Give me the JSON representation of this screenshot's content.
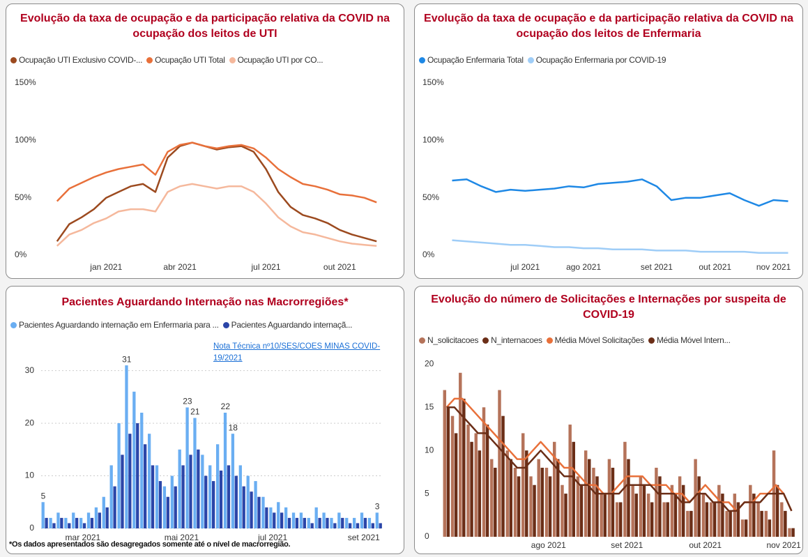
{
  "chart_data": [
    {
      "type": "line",
      "title": "Evolução da taxa de ocupação e da participação relativa da COVID na ocupação dos leitos de UTI",
      "categories": [
        null,
        null,
        null,
        null,
        "jan 2021",
        null,
        null,
        null,
        null,
        null,
        "abr 2021",
        null,
        null,
        null,
        null,
        null,
        null,
        "jul 2021",
        null,
        null,
        null,
        null,
        null,
        "out 2021",
        null,
        null,
        null
      ],
      "series": [
        {
          "name": "Ocupação UTI Exclusivo COVID-...",
          "color": "#9c4a1f",
          "values": [
            12,
            27,
            33,
            40,
            50,
            55,
            60,
            62,
            55,
            85,
            95,
            98,
            95,
            92,
            94,
            95,
            90,
            75,
            55,
            42,
            35,
            32,
            28,
            22,
            18,
            15,
            12
          ]
        },
        {
          "name": "Ocupação UTI Total",
          "color": "#e8703a",
          "values": [
            47,
            58,
            63,
            68,
            72,
            75,
            77,
            79,
            70,
            90,
            96,
            98,
            95,
            93,
            95,
            96,
            93,
            85,
            75,
            68,
            62,
            60,
            57,
            53,
            52,
            50,
            46
          ]
        },
        {
          "name": "Ocupação UTI por CO...",
          "color": "#f5b89c",
          "values": [
            8,
            18,
            22,
            28,
            32,
            38,
            40,
            40,
            38,
            55,
            60,
            62,
            60,
            58,
            60,
            60,
            55,
            45,
            33,
            25,
            20,
            18,
            15,
            12,
            10,
            9,
            8
          ]
        }
      ],
      "ylim": [
        0,
        150
      ],
      "yticks": [
        {
          "value": 0,
          "label": "0%"
        },
        {
          "value": 50,
          "label": "50%"
        },
        {
          "value": 100,
          "label": "100%"
        },
        {
          "value": 150,
          "label": "150%"
        }
      ],
      "grid": false
    },
    {
      "type": "line",
      "title": "Evolução da taxa de ocupação e da participação relativa da COVID na ocupação dos leitos de Enfermaria",
      "categories": [
        null,
        null,
        null,
        null,
        null,
        "jul 2021",
        null,
        null,
        null,
        "ago 2021",
        null,
        null,
        null,
        null,
        "set 2021",
        null,
        null,
        null,
        "out 2021",
        null,
        null,
        null,
        "nov 2021",
        null
      ],
      "series": [
        {
          "name": "Ocupação Enfermaria Total",
          "color": "#1e88e5",
          "values": [
            65,
            66,
            60,
            55,
            57,
            56,
            57,
            58,
            60,
            59,
            62,
            63,
            64,
            66,
            60,
            48,
            50,
            50,
            52,
            54,
            48,
            43,
            48,
            47
          ]
        },
        {
          "name": "Ocupação Enfermaria por COVID-19",
          "color": "#9fcdf7",
          "values": [
            13,
            12,
            11,
            10,
            9,
            9,
            8,
            7,
            7,
            6,
            6,
            5,
            5,
            5,
            4,
            4,
            4,
            3,
            3,
            3,
            3,
            2,
            2,
            2
          ]
        }
      ],
      "ylim": [
        0,
        150
      ],
      "yticks": [
        {
          "value": 0,
          "label": "0%"
        },
        {
          "value": 50,
          "label": "50%"
        },
        {
          "value": 100,
          "label": "100%"
        },
        {
          "value": 150,
          "label": "150%"
        }
      ],
      "grid": false
    },
    {
      "type": "bar",
      "title": "Pacientes Aguardando Internação nas Macrorregiões*",
      "note": "Nota Técnica nº10/SES/COES MINAS COVID-19/2021",
      "footnote": "*Os dados apresentados são desagregados somente até o nível de macrorregião.",
      "categories": [
        null,
        null,
        null,
        null,
        null,
        "mar 2021",
        null,
        null,
        null,
        null,
        null,
        null,
        null,
        null,
        null,
        null,
        null,
        null,
        "mai 2021",
        null,
        null,
        null,
        null,
        null,
        null,
        null,
        null,
        null,
        null,
        null,
        "jul 2021",
        null,
        null,
        null,
        null,
        null,
        null,
        null,
        null,
        null,
        null,
        null,
        "set 2021",
        null,
        null
      ],
      "series": [
        {
          "name": "Pacientes Aguardando internação em Enfermaria para ...",
          "color": "#6aaef2",
          "values": [
            5,
            2,
            3,
            2,
            3,
            2,
            3,
            4,
            6,
            12,
            20,
            31,
            26,
            22,
            18,
            12,
            8,
            10,
            15,
            23,
            21,
            14,
            12,
            16,
            22,
            18,
            12,
            10,
            9,
            6,
            4,
            5,
            4,
            3,
            3,
            2,
            4,
            3,
            2,
            3,
            2,
            2,
            3,
            2,
            3
          ],
          "value_labels": [
            "5",
            null,
            null,
            null,
            null,
            null,
            null,
            null,
            null,
            null,
            null,
            "31",
            null,
            null,
            null,
            null,
            null,
            null,
            null,
            "23",
            "21",
            null,
            null,
            null,
            "22",
            "18",
            null,
            null,
            null,
            null,
            null,
            null,
            null,
            null,
            null,
            null,
            null,
            null,
            null,
            null,
            null,
            null,
            null,
            null,
            "3"
          ]
        },
        {
          "name": "Pacientes Aguardando internaçã...",
          "color": "#2b45a8",
          "values": [
            2,
            1,
            2,
            1,
            2,
            1,
            2,
            3,
            4,
            8,
            14,
            18,
            20,
            16,
            12,
            9,
            6,
            8,
            12,
            14,
            15,
            10,
            9,
            11,
            12,
            10,
            8,
            7,
            6,
            4,
            3,
            3,
            2,
            2,
            2,
            1,
            2,
            2,
            1,
            2,
            1,
            1,
            2,
            1,
            1
          ]
        }
      ],
      "ylim": [
        0,
        33
      ],
      "yticks": [
        0,
        10,
        20,
        30
      ],
      "grid": true
    },
    {
      "type": "bar",
      "title": "Evolução do número de Solicitações e Internações por suspeita de COVID-19",
      "categories": [
        null,
        null,
        null,
        null,
        null,
        null,
        null,
        null,
        null,
        null,
        null,
        null,
        null,
        "ago 2021",
        null,
        null,
        null,
        null,
        null,
        null,
        null,
        null,
        null,
        "set 2021",
        null,
        null,
        null,
        null,
        null,
        null,
        null,
        null,
        null,
        "out 2021",
        null,
        null,
        null,
        null,
        null,
        null,
        null,
        null,
        null,
        "nov 2021",
        null
      ],
      "series": [
        {
          "name": "N_solicitacoes",
          "color": "#b5735a",
          "values": [
            17,
            14,
            19,
            13,
            12,
            15,
            9,
            17,
            10,
            8,
            12,
            7,
            9,
            8,
            11,
            6,
            13,
            7,
            10,
            8,
            5,
            9,
            4,
            11,
            6,
            7,
            5,
            8,
            4,
            6,
            7,
            3,
            9,
            5,
            4,
            6,
            3,
            5,
            2,
            6,
            4,
            3,
            10,
            4,
            1
          ]
        },
        {
          "name": "N_internacoes",
          "color": "#6b2e17",
          "values": [
            15,
            12,
            16,
            11,
            10,
            13,
            8,
            14,
            9,
            7,
            10,
            6,
            8,
            7,
            9,
            5,
            11,
            6,
            9,
            7,
            5,
            8,
            4,
            9,
            5,
            6,
            4,
            7,
            4,
            5,
            6,
            3,
            7,
            4,
            4,
            5,
            3,
            4,
            2,
            5,
            3,
            2,
            6,
            3,
            1
          ]
        },
        {
          "name": "Média Móvel Solicitações",
          "color": "#e8703a",
          "type": "line",
          "values": [
            15,
            16,
            16,
            15,
            14,
            13,
            12,
            11,
            10,
            9,
            9,
            10,
            11,
            10,
            9,
            8,
            8,
            7,
            6,
            6,
            5,
            5,
            6,
            7,
            7,
            7,
            6,
            6,
            6,
            5,
            5,
            4,
            5,
            6,
            5,
            4,
            4,
            3,
            4,
            4,
            5,
            5,
            6,
            5,
            3
          ]
        },
        {
          "name": "Média Móvel Intern...",
          "color": "#6b2e17",
          "type": "line",
          "values": [
            15,
            15,
            14,
            13,
            12,
            12,
            11,
            10,
            9,
            8,
            8,
            9,
            10,
            9,
            8,
            7,
            7,
            6,
            6,
            5,
            5,
            5,
            5,
            6,
            6,
            6,
            6,
            5,
            5,
            5,
            4,
            4,
            5,
            5,
            4,
            4,
            3,
            3,
            4,
            4,
            4,
            5,
            5,
            5,
            3
          ]
        }
      ],
      "ylim": [
        0,
        21
      ],
      "yticks": [
        0,
        5,
        10,
        15,
        20
      ],
      "grid": false
    }
  ]
}
